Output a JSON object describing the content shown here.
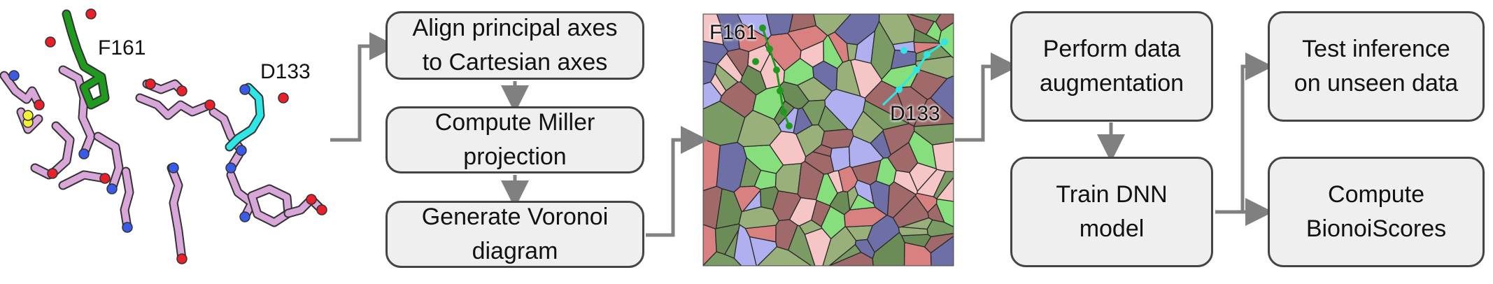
{
  "labels": {
    "structure_f": "F161",
    "structure_d": "D133",
    "voronoi_f": "F161",
    "voronoi_d": "D133"
  },
  "steps": {
    "align": "Align principal axes\nto Cartesian axes",
    "miller": "Compute Miller\nprojection",
    "voronoi": "Generate Voronoi\ndiagram",
    "augment": "Perform data\naugmentation",
    "train": "Train DNN\nmodel",
    "test": "Test inference\non unseen data",
    "scores": "Compute\nBionoiScores"
  },
  "colors": {
    "arrow": "#808080",
    "box_fill": "#efefef",
    "box_border": "#444444",
    "ligand_pink": "#d9a6d9",
    "f161_green": "#1f9a1f",
    "d133_cyan": "#2ee6e6",
    "oxygen_red": "#e8202a",
    "nitrogen_blue": "#3a5ae8",
    "sulfur_yellow": "#f2f23a"
  }
}
